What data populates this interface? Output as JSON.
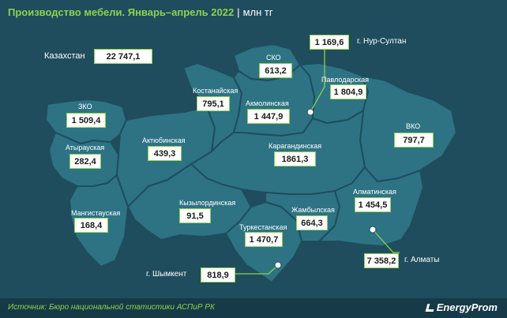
{
  "header": {
    "title": "Производство мебели. Январь–апрель 2022",
    "separator": "|",
    "unit": "млн тг"
  },
  "kazakhstan": {
    "label": "Казахстан",
    "value": "22 747,1"
  },
  "regions": {
    "zko": {
      "name": "ЗКО",
      "value": "1 509,4"
    },
    "atyrau": {
      "name": "Атырауская",
      "value": "282,4"
    },
    "mangystau": {
      "name": "Мангистауская",
      "value": "168,4"
    },
    "aktobe": {
      "name": "Актюбинская",
      "value": "439,3"
    },
    "kostanay": {
      "name": "Костанайская",
      "value": "795,1"
    },
    "sko": {
      "name": "СКО",
      "value": "613,2"
    },
    "akmola": {
      "name": "Акмолинская",
      "value": "1 447,9"
    },
    "pavlodar": {
      "name": "Павлодарская",
      "value": "1 804,9"
    },
    "vko": {
      "name": "ВКО",
      "value": "797,7"
    },
    "karaganda": {
      "name": "Карагандинская",
      "value": "1861,3"
    },
    "kyzylorda": {
      "name": "Кызылординская",
      "value": "91,5"
    },
    "zhambyl": {
      "name": "Жамбылская",
      "value": "664,3"
    },
    "almaty_region": {
      "name": "Алматинская",
      "value": "1 454,5"
    },
    "turkestan": {
      "name": "Туркестанская",
      "value": "1 470,7"
    }
  },
  "cities": {
    "nur_sultan": {
      "name": "г. Нур-Султан",
      "value": "1 169,6"
    },
    "almaty": {
      "name": "г. Алматы",
      "value": "7 358,2"
    },
    "shymkent": {
      "name": "г. Шымкент",
      "value": "818,9"
    }
  },
  "footer": {
    "source": "Источник: Бюро национальной статистики АСПиР РК",
    "brand": "EnergyProm"
  },
  "colors": {
    "background": "#1f4d5d",
    "region_fill": "#2d7384",
    "region_border": "#1f4d5d",
    "accent_green": "#8fd14f"
  }
}
